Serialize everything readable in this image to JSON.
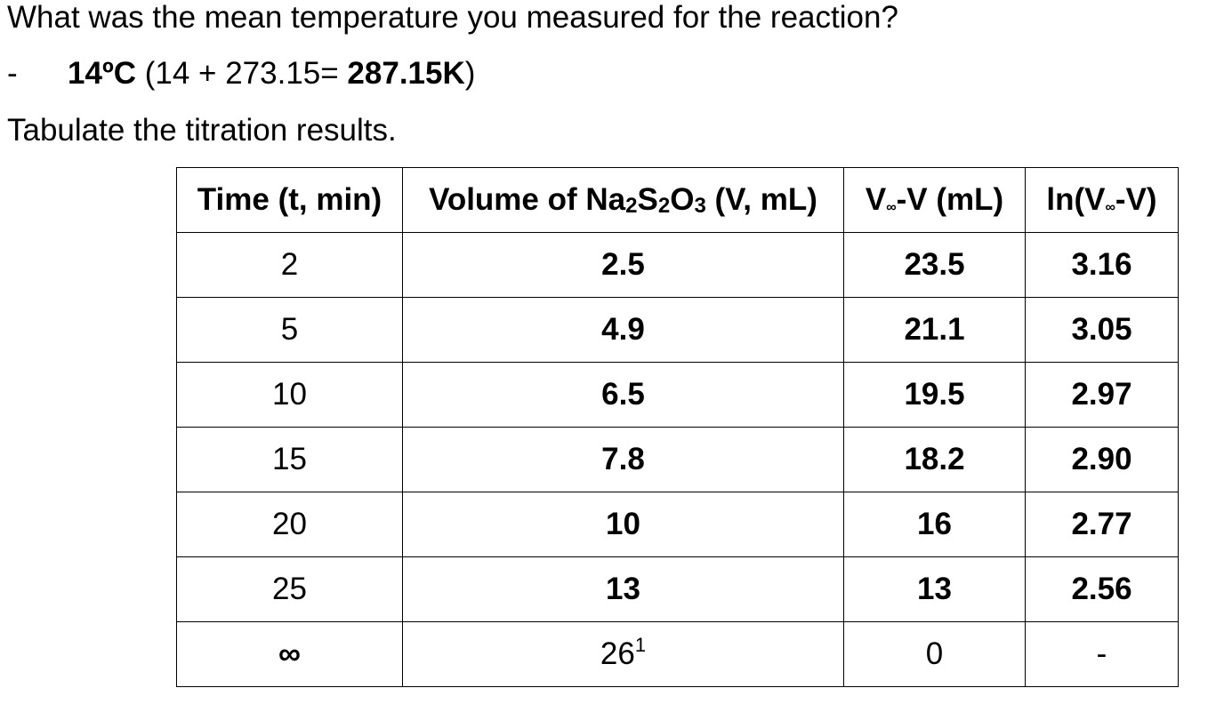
{
  "question_1": "What was the mean temperature you measured for the reaction?",
  "answer": {
    "dash": "-",
    "celsius": "14",
    "celsius_unit": "ºC",
    "conversion": " (14 + 273.15= ",
    "kelvin": "287.15K",
    "close": ")"
  },
  "question_2": "Tabulate the titration results.",
  "table": {
    "headers": {
      "time": "Time (t, min)",
      "volume_prefix": "Volume of Na",
      "volume_sub_1": "2",
      "volume_mid_1": "S",
      "volume_sub_2": "2",
      "volume_mid_2": "O",
      "volume_sub_3": "3",
      "volume_suffix": " (V, mL)",
      "diff_prefix": "V",
      "diff_sub": "∞",
      "diff_suffix": "-V (mL)",
      "ln_prefix": "ln(V",
      "ln_sub": "∞",
      "ln_suffix": "-V)"
    },
    "rows": [
      {
        "time": "2",
        "volume": "2.5",
        "diff": "23.5",
        "ln": "3.16"
      },
      {
        "time": "5",
        "volume": "4.9",
        "diff": "21.1",
        "ln": "3.05"
      },
      {
        "time": "10",
        "volume": "6.5",
        "diff": "19.5",
        "ln": "2.97"
      },
      {
        "time": "15",
        "volume": "7.8",
        "diff": "18.2",
        "ln": "2.90"
      },
      {
        "time": "20",
        "volume": "10",
        "diff": "16",
        "ln": "2.77"
      },
      {
        "time": "25",
        "volume": "13",
        "diff": "13",
        "ln": "2.56"
      }
    ],
    "final_row": {
      "time": "∞",
      "volume": "26",
      "volume_note": "1",
      "diff": "0",
      "ln": "-"
    }
  }
}
